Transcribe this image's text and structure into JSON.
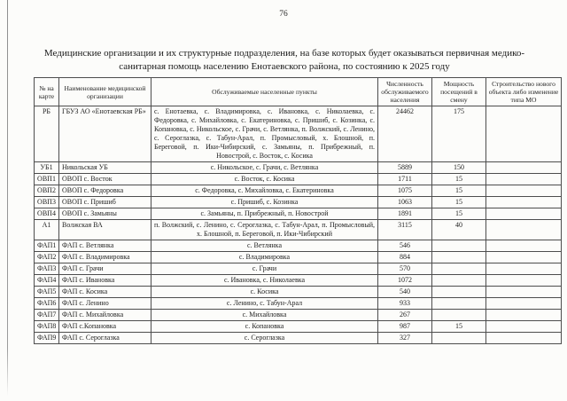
{
  "page": {
    "number": "76"
  },
  "title": "Медицинские организации и их структурные подразделения, на базе которых будет оказываться первичная медико-санитарная помощь населению Енотаевского района, по состоянию к 2025 году",
  "table": {
    "headers": [
      "№ на карте",
      "Наименование медицинской организации",
      "Обслуживаемые населенные пункты",
      "Численность обслуживаемого населения",
      "Мощность посещений в смену",
      "Строительство нового объекта либо изменение типа МО"
    ],
    "rows": [
      {
        "id": "РБ",
        "org": "ГБУЗ АО «Енотаевская РБ»",
        "localities": "с. Енотаевка, с. Владимировка, с. Ивановка, с. Николаевка, с. Федоровка, с. Михайловка, с. Екатериновка, с. Пришиб, с. Козинка, с. Копановка, с. Никольское, с. Грачи, с. Ветлянка, п. Волжский, с. Ленино, с. Сероглазка, с. Табун-Арал, п. Промысловый, х. Блошной, п. Береговой, п. Ики-Чибирский, с. Замьяны, п. Прибрежный, п. Новострой, с. Восток, с. Косика",
        "population": "24462",
        "capacity": "175",
        "construction": ""
      },
      {
        "id": "УБ1",
        "org": "Никольская УБ",
        "localities": "с. Никольское, с. Грачи, с. Ветлянка",
        "population": "5889",
        "capacity": "150",
        "construction": ""
      },
      {
        "id": "ОВП1",
        "org": "ОВОП с. Восток",
        "localities": "с. Восток, с. Косика",
        "population": "1711",
        "capacity": "15",
        "construction": ""
      },
      {
        "id": "ОВП2",
        "org": "ОВОП с. Федоровка",
        "localities": "с. Федоровка, с. Михайловка, с. Екатериновка",
        "population": "1075",
        "capacity": "15",
        "construction": ""
      },
      {
        "id": "ОВП3",
        "org": "ОВОП с. Пришиб",
        "localities": "с. Пришиб, с. Козинка",
        "population": "1063",
        "capacity": "15",
        "construction": ""
      },
      {
        "id": "ОВП4",
        "org": "ОВОП с. Замьяны",
        "localities": "с. Замьяны, п. Прибрежный, п. Новострой",
        "population": "1891",
        "capacity": "15",
        "construction": ""
      },
      {
        "id": "А1",
        "org": "Волжская ВА",
        "localities": "п. Волжский, с. Ленино, с. Сероглазка, с. Табун-Арал, п. Промысловый, х. Блошной, п. Береговой, п. Ики-Чибирский",
        "population": "3115",
        "capacity": "40",
        "construction": ""
      },
      {
        "id": "ФАП1",
        "org": "ФАП с. Ветлянка",
        "localities": "с. Ветлянка",
        "population": "546",
        "capacity": "",
        "construction": ""
      },
      {
        "id": "ФАП2",
        "org": "ФАП с. Владимировка",
        "localities": "с. Владимировка",
        "population": "884",
        "capacity": "",
        "construction": ""
      },
      {
        "id": "ФАП3",
        "org": "ФАП с. Грачи",
        "localities": "с. Грачи",
        "population": "570",
        "capacity": "",
        "construction": ""
      },
      {
        "id": "ФАП4",
        "org": "ФАП с. Ивановка",
        "localities": "с. Ивановка, с. Николаевка",
        "population": "1072",
        "capacity": "",
        "construction": ""
      },
      {
        "id": "ФАП5",
        "org": "ФАП с. Косика",
        "localities": "с. Косика",
        "population": "540",
        "capacity": "",
        "construction": ""
      },
      {
        "id": "ФАП6",
        "org": "ФАП с. Ленино",
        "localities": "с. Ленино, с. Табун-Арал",
        "population": "933",
        "capacity": "",
        "construction": ""
      },
      {
        "id": "ФАП7",
        "org": "ФАП с. Михайловка",
        "localities": "с. Михайловка",
        "population": "267",
        "capacity": "",
        "construction": ""
      },
      {
        "id": "ФАП8",
        "org": "ФАП с.Копановка",
        "localities": "с. Копановка",
        "population": "987",
        "capacity": "15",
        "construction": ""
      },
      {
        "id": "ФАП9",
        "org": "ФАП с. Сероглазка",
        "localities": "с. Сероглазка",
        "population": "327",
        "capacity": "",
        "construction": ""
      }
    ]
  }
}
